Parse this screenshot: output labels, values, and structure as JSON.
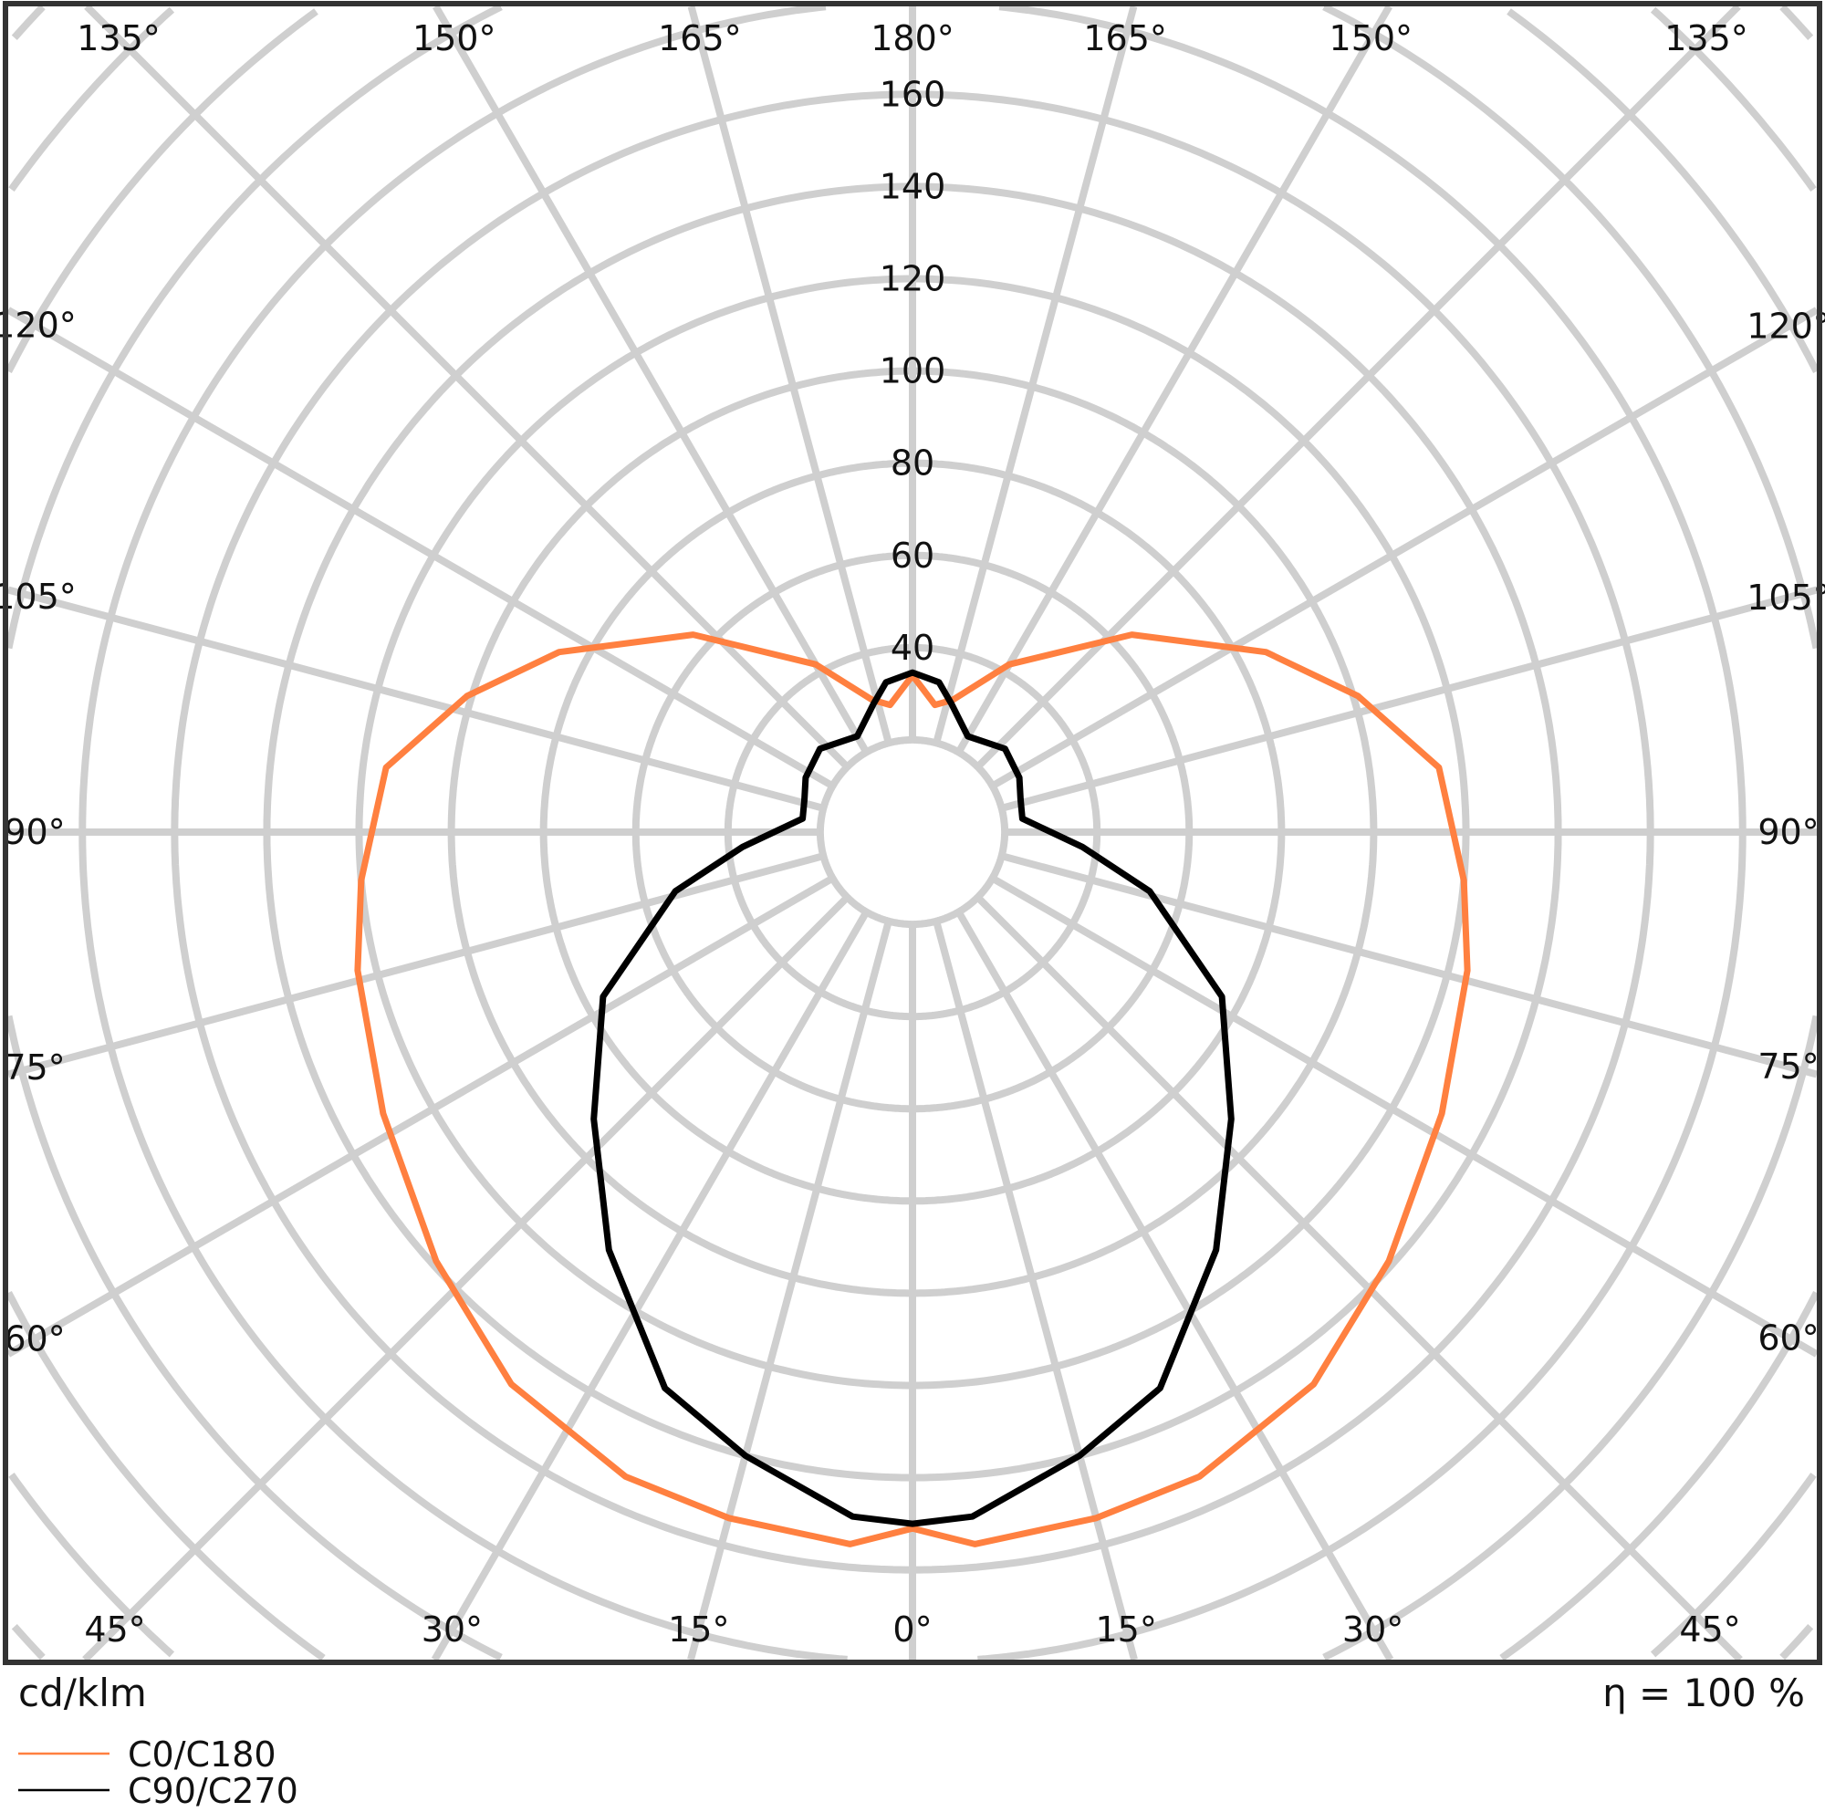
{
  "chart_data": {
    "type": "polar-line",
    "title": "",
    "unit_label": "cd/klm",
    "efficiency_label": "η = 100 %",
    "radial_ticks": [
      40,
      60,
      80,
      100,
      120,
      140,
      160
    ],
    "radial_ticks_labels": [
      "40",
      "60",
      "80",
      "100",
      "120",
      "140",
      "160"
    ],
    "angle_labels": {
      "left": [
        "135°",
        "150°",
        "165°",
        "180°",
        "120°",
        "105°",
        "90°",
        "75°",
        "60°",
        "45°",
        "30°",
        "15°",
        "0°"
      ],
      "right": [
        "165°",
        "150°",
        "135°",
        "120°",
        "105°",
        "90°",
        "75°",
        "60°",
        "45°",
        "30°",
        "15°"
      ]
    },
    "grid": true,
    "legend_placement": "bottom-left",
    "angles": [
      0,
      5,
      15,
      24,
      36,
      48,
      62,
      76,
      85,
      97,
      107,
      117,
      132,
      150,
      163,
      170,
      180
    ],
    "series": [
      {
        "name": "C0/C180",
        "color": "#ff8040",
        "values": [
          151,
          155,
          154,
          153,
          148,
          139,
          130,
          124,
          120,
          115,
          101,
          86,
          64,
          42,
          30,
          28,
          34
        ]
      },
      {
        "name": "C90/C270",
        "color": "#000000",
        "values": [
          150,
          149,
          140,
          132,
          112,
          93,
          76,
          53,
          37,
          24,
          24.5,
          26,
          27,
          24,
          29,
          33,
          34.6
        ]
      }
    ]
  }
}
